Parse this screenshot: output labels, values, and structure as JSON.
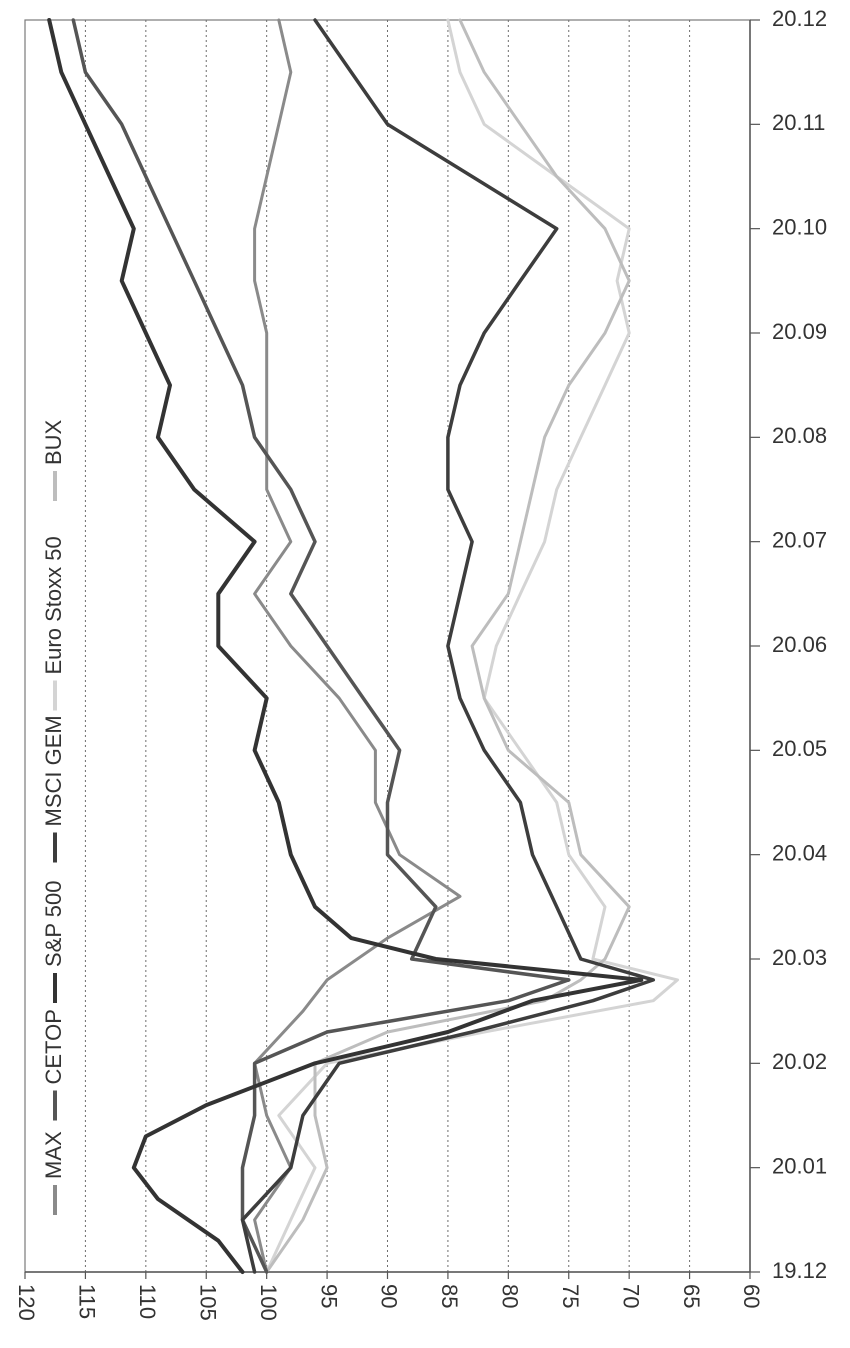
{
  "chart_data": {
    "type": "line",
    "orientation": "rotated-90-clockwise",
    "title": "",
    "xlabel": "",
    "ylabel": "",
    "x_ticks": [
      "19.12",
      "20.01",
      "20.02",
      "20.03",
      "20.04",
      "20.05",
      "20.06",
      "20.07",
      "20.08",
      "20.09",
      "20.10",
      "20.11",
      "20.12"
    ],
    "ylim": [
      60,
      120
    ],
    "y_ticks": [
      120,
      115,
      110,
      105,
      100,
      95,
      90,
      85,
      80,
      75,
      70,
      65,
      60
    ],
    "grid": "dotted vertical lines at y ticks",
    "legend_position": "top (rotated, along left edge)",
    "series": [
      {
        "name": "MAX",
        "color": "#8a8a8a",
        "points": [
          [
            0,
            100
          ],
          [
            0.5,
            101
          ],
          [
            1,
            98
          ],
          [
            1.5,
            100
          ],
          [
            2,
            101
          ],
          [
            2.5,
            97
          ],
          [
            2.8,
            95
          ],
          [
            3.2,
            90
          ],
          [
            3.6,
            84
          ],
          [
            4,
            89
          ],
          [
            4.5,
            91
          ],
          [
            5,
            91
          ],
          [
            5.5,
            94
          ],
          [
            6,
            98
          ],
          [
            6.5,
            101
          ],
          [
            7,
            98
          ],
          [
            7.5,
            100
          ],
          [
            8,
            100
          ],
          [
            8.5,
            100
          ],
          [
            9,
            100
          ],
          [
            9.5,
            101
          ],
          [
            10,
            101
          ],
          [
            10.5,
            100
          ],
          [
            11,
            99
          ],
          [
            11.5,
            98
          ],
          [
            12,
            99
          ]
        ]
      },
      {
        "name": "CETOP",
        "color": "#555555",
        "points": [
          [
            0,
            100
          ],
          [
            0.5,
            102
          ],
          [
            1,
            102
          ],
          [
            1.5,
            101
          ],
          [
            2,
            101
          ],
          [
            2.3,
            95
          ],
          [
            2.6,
            80
          ],
          [
            2.8,
            75
          ],
          [
            3,
            88
          ],
          [
            3.5,
            86
          ],
          [
            4,
            90
          ],
          [
            4.5,
            90
          ],
          [
            5,
            89
          ],
          [
            5.5,
            92
          ],
          [
            6,
            95
          ],
          [
            6.5,
            98
          ],
          [
            7,
            96
          ],
          [
            7.5,
            98
          ],
          [
            8,
            101
          ],
          [
            8.5,
            102
          ],
          [
            9,
            104
          ],
          [
            9.5,
            106
          ],
          [
            10,
            108
          ],
          [
            10.5,
            110
          ],
          [
            11,
            112
          ],
          [
            11.5,
            115
          ],
          [
            12,
            116
          ]
        ]
      },
      {
        "name": "S&P 500",
        "color": "#333333",
        "points": [
          [
            0,
            102
          ],
          [
            0.3,
            104
          ],
          [
            0.7,
            109
          ],
          [
            1,
            111
          ],
          [
            1.3,
            110
          ],
          [
            1.6,
            105
          ],
          [
            2,
            96
          ],
          [
            2.3,
            85
          ],
          [
            2.6,
            78
          ],
          [
            2.8,
            69
          ],
          [
            3,
            86
          ],
          [
            3.2,
            93
          ],
          [
            3.5,
            96
          ],
          [
            4,
            98
          ],
          [
            4.5,
            99
          ],
          [
            5,
            101
          ],
          [
            5.5,
            100
          ],
          [
            6,
            104
          ],
          [
            6.5,
            104
          ],
          [
            7,
            101
          ],
          [
            7.5,
            106
          ],
          [
            8,
            109
          ],
          [
            8.5,
            108
          ],
          [
            9,
            110
          ],
          [
            9.5,
            112
          ],
          [
            10,
            111
          ],
          [
            10.5,
            113
          ],
          [
            11,
            115
          ],
          [
            11.5,
            117
          ],
          [
            12,
            118
          ]
        ]
      },
      {
        "name": "MSCI GEM",
        "color": "#3d3d3d",
        "points": [
          [
            0,
            101
          ],
          [
            0.5,
            102
          ],
          [
            1,
            98
          ],
          [
            1.5,
            97
          ],
          [
            2,
            94
          ],
          [
            2.3,
            83
          ],
          [
            2.6,
            73
          ],
          [
            2.8,
            68
          ],
          [
            3,
            74
          ],
          [
            3.5,
            76
          ],
          [
            4,
            78
          ],
          [
            4.5,
            79
          ],
          [
            5,
            82
          ],
          [
            5.5,
            84
          ],
          [
            6,
            85
          ],
          [
            6.5,
            84
          ],
          [
            7,
            83
          ],
          [
            7.5,
            85
          ],
          [
            8,
            85
          ],
          [
            8.5,
            84
          ],
          [
            9,
            82
          ],
          [
            9.5,
            79
          ],
          [
            10,
            76
          ],
          [
            10.5,
            83
          ],
          [
            11,
            90
          ],
          [
            11.5,
            93
          ],
          [
            12,
            96
          ]
        ]
      },
      {
        "name": "Euro Stoxx 50",
        "color": "#d4d4d4",
        "points": [
          [
            0,
            100
          ],
          [
            0.5,
            98
          ],
          [
            1,
            96
          ],
          [
            1.5,
            99
          ],
          [
            2,
            95
          ],
          [
            2.3,
            82
          ],
          [
            2.6,
            68
          ],
          [
            2.8,
            66
          ],
          [
            3,
            73
          ],
          [
            3.5,
            72
          ],
          [
            4,
            75
          ],
          [
            4.5,
            76
          ],
          [
            5,
            79
          ],
          [
            5.5,
            82
          ],
          [
            6,
            81
          ],
          [
            6.5,
            79
          ],
          [
            7,
            77
          ],
          [
            7.5,
            76
          ],
          [
            8,
            74
          ],
          [
            8.5,
            72
          ],
          [
            9,
            70
          ],
          [
            9.5,
            71
          ],
          [
            10,
            70
          ],
          [
            10.5,
            76
          ],
          [
            11,
            82
          ],
          [
            11.5,
            84
          ],
          [
            12,
            85
          ]
        ]
      },
      {
        "name": "BUX",
        "color": "#bdbdbd",
        "points": [
          [
            0,
            100
          ],
          [
            0.5,
            97
          ],
          [
            1,
            95
          ],
          [
            1.5,
            96
          ],
          [
            2,
            96
          ],
          [
            2.3,
            90
          ],
          [
            2.6,
            77
          ],
          [
            2.8,
            74
          ],
          [
            3,
            72
          ],
          [
            3.5,
            70
          ],
          [
            4,
            74
          ],
          [
            4.5,
            75
          ],
          [
            5,
            80
          ],
          [
            5.5,
            82
          ],
          [
            6,
            83
          ],
          [
            6.5,
            80
          ],
          [
            7,
            79
          ],
          [
            7.5,
            78
          ],
          [
            8,
            77
          ],
          [
            8.5,
            75
          ],
          [
            9,
            72
          ],
          [
            9.5,
            70
          ],
          [
            10,
            72
          ],
          [
            10.5,
            76
          ],
          [
            11,
            79
          ],
          [
            11.5,
            82
          ],
          [
            12,
            84
          ]
        ]
      }
    ]
  }
}
